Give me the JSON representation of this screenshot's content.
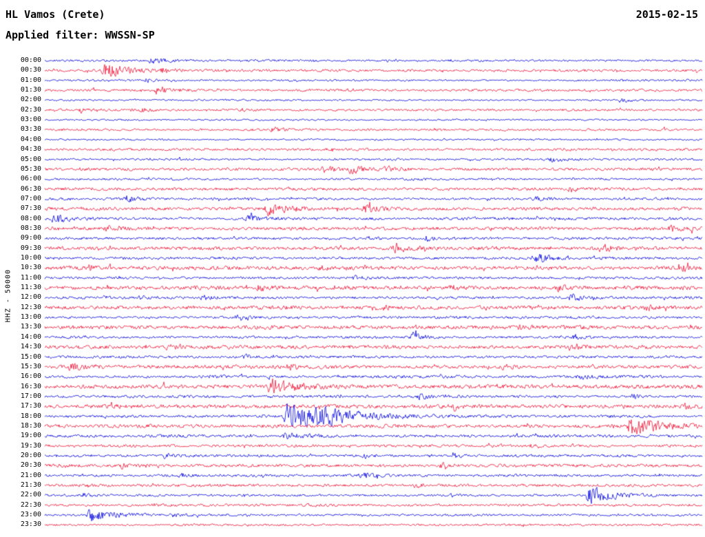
{
  "header": {
    "station": "HL Vamos (Crete)",
    "date": "2015-02-15",
    "filter": "Applied filter: WWSSN-SP"
  },
  "y_axis_label": "HHZ - 50000",
  "chart_data": {
    "type": "line",
    "subtype": "helicorder-seismogram",
    "title": "HL Vamos (Crete)",
    "date": "2015-02-15",
    "filter": "WWSSN-SP",
    "channel_scale_label": "HHZ - 50000",
    "minutes_per_row": 30,
    "time_start": "00:00",
    "time_end": "23:59",
    "legend_position": "none",
    "grid": false,
    "colors": {
      "blue": "#0000dd",
      "red": "#ee1133"
    },
    "rows": [
      {
        "t": "00:00",
        "c": "blue",
        "a": 1.8,
        "b": [
          [
            0.16,
            5,
            22
          ]
        ]
      },
      {
        "t": "00:30",
        "c": "red",
        "a": 2.2,
        "b": [
          [
            0.091,
            14,
            28
          ],
          [
            0.18,
            4,
            15
          ]
        ]
      },
      {
        "t": "01:00",
        "c": "blue",
        "a": 1.6,
        "b": [
          [
            0.155,
            3,
            12
          ]
        ]
      },
      {
        "t": "01:30",
        "c": "red",
        "a": 2.2,
        "b": [
          [
            0.17,
            7,
            20
          ]
        ]
      },
      {
        "t": "02:00",
        "c": "blue",
        "a": 1.5,
        "b": [
          [
            0.875,
            4,
            15
          ]
        ]
      },
      {
        "t": "02:30",
        "c": "red",
        "a": 2.0,
        "b": [
          [
            0.055,
            4,
            12
          ],
          [
            0.147,
            4,
            14
          ]
        ]
      },
      {
        "t": "03:00",
        "c": "blue",
        "a": 1.5,
        "b": []
      },
      {
        "t": "03:30",
        "c": "red",
        "a": 2.0,
        "b": [
          [
            0.345,
            4,
            14
          ]
        ]
      },
      {
        "t": "04:00",
        "c": "blue",
        "a": 1.5,
        "b": []
      },
      {
        "t": "04:30",
        "c": "red",
        "a": 2.2,
        "b": []
      },
      {
        "t": "05:00",
        "c": "blue",
        "a": 1.8,
        "b": [
          [
            0.77,
            4,
            14
          ]
        ]
      },
      {
        "t": "05:30",
        "c": "red",
        "a": 2.6,
        "b": [
          [
            0.42,
            6,
            16
          ],
          [
            0.466,
            7,
            18
          ],
          [
            0.52,
            5,
            14
          ]
        ]
      },
      {
        "t": "06:00",
        "c": "blue",
        "a": 1.8,
        "b": [
          [
            0.56,
            3,
            12
          ]
        ]
      },
      {
        "t": "06:30",
        "c": "red",
        "a": 2.6,
        "b": [
          [
            0.8,
            5,
            14
          ]
        ]
      },
      {
        "t": "07:00",
        "c": "blue",
        "a": 2.2,
        "b": [
          [
            0.125,
            5,
            14
          ],
          [
            0.744,
            4,
            12
          ]
        ]
      },
      {
        "t": "07:30",
        "c": "red",
        "a": 2.8,
        "b": [
          [
            0.338,
            11,
            30
          ],
          [
            0.487,
            7,
            22
          ]
        ]
      },
      {
        "t": "08:00",
        "c": "blue",
        "a": 2.4,
        "b": [
          [
            0.014,
            9,
            20
          ],
          [
            0.31,
            7,
            18
          ]
        ]
      },
      {
        "t": "08:30",
        "c": "red",
        "a": 3.0,
        "b": [
          [
            0.094,
            5,
            14
          ],
          [
            0.953,
            6,
            16
          ]
        ]
      },
      {
        "t": "09:00",
        "c": "blue",
        "a": 2.2,
        "b": [
          [
            0.58,
            4,
            12
          ]
        ]
      },
      {
        "t": "09:30",
        "c": "red",
        "a": 3.0,
        "b": [
          [
            0.534,
            8,
            20
          ],
          [
            0.853,
            6,
            16
          ]
        ]
      },
      {
        "t": "10:00",
        "c": "blue",
        "a": 2.4,
        "b": [
          [
            0.749,
            8,
            18
          ]
        ]
      },
      {
        "t": "10:30",
        "c": "red",
        "a": 3.2,
        "b": [
          [
            0.068,
            5,
            12
          ],
          [
            0.414,
            5,
            12
          ],
          [
            0.968,
            5,
            12
          ]
        ]
      },
      {
        "t": "11:00",
        "c": "blue",
        "a": 2.2,
        "b": [
          [
            0.471,
            4,
            12
          ]
        ]
      },
      {
        "t": "11:30",
        "c": "red",
        "a": 3.2,
        "b": [
          [
            0.325,
            6,
            16
          ],
          [
            0.618,
            4,
            12
          ],
          [
            0.78,
            5,
            12
          ]
        ]
      },
      {
        "t": "12:00",
        "c": "blue",
        "a": 2.4,
        "b": [
          [
            0.147,
            4,
            12
          ],
          [
            0.24,
            4,
            12
          ],
          [
            0.8,
            7,
            16
          ]
        ]
      },
      {
        "t": "12:30",
        "c": "red",
        "a": 3.2,
        "b": [
          [
            0.518,
            4,
            12
          ],
          [
            0.916,
            4,
            12
          ]
        ]
      },
      {
        "t": "13:00",
        "c": "blue",
        "a": 2.2,
        "b": [
          [
            0.293,
            4,
            12
          ]
        ]
      },
      {
        "t": "13:30",
        "c": "red",
        "a": 3.2,
        "b": [
          [
            0.722,
            4,
            12
          ]
        ]
      },
      {
        "t": "14:00",
        "c": "blue",
        "a": 2.2,
        "b": [
          [
            0.56,
            7,
            16
          ],
          [
            0.806,
            4,
            12
          ]
        ]
      },
      {
        "t": "14:30",
        "c": "red",
        "a": 3.2,
        "b": [
          [
            0.188,
            5,
            12
          ],
          [
            0.806,
            4,
            12
          ]
        ]
      },
      {
        "t": "15:00",
        "c": "blue",
        "a": 2.2,
        "b": [
          [
            0.304,
            4,
            12
          ]
        ]
      },
      {
        "t": "15:30",
        "c": "red",
        "a": 3.2,
        "b": [
          [
            0.037,
            7,
            16
          ],
          [
            0.372,
            5,
            12
          ],
          [
            0.696,
            5,
            12
          ]
        ]
      },
      {
        "t": "16:00",
        "c": "blue",
        "a": 2.4,
        "b": [
          [
            0.246,
            4,
            12
          ],
          [
            0.81,
            5,
            12
          ]
        ]
      },
      {
        "t": "16:30",
        "c": "red",
        "a": 3.4,
        "b": [
          [
            0.345,
            12,
            40
          ]
        ]
      },
      {
        "t": "17:00",
        "c": "blue",
        "a": 2.4,
        "b": [
          [
            0.57,
            5,
            12
          ],
          [
            0.895,
            4,
            12
          ]
        ]
      },
      {
        "t": "17:30",
        "c": "red",
        "a": 3.2,
        "b": [
          [
            0.623,
            5,
            12
          ],
          [
            0.975,
            5,
            12
          ]
        ]
      },
      {
        "t": "18:00",
        "c": "blue",
        "a": 2.4,
        "b": [
          [
            0.366,
            24,
            55
          ],
          [
            0.41,
            8,
            70
          ]
        ]
      },
      {
        "t": "18:30",
        "c": "red",
        "a": 3.0,
        "b": [
          [
            0.89,
            18,
            40
          ]
        ]
      },
      {
        "t": "19:00",
        "c": "blue",
        "a": 2.4,
        "b": [
          [
            0.366,
            6,
            30
          ]
        ]
      },
      {
        "t": "19:30",
        "c": "red",
        "a": 2.4,
        "b": [
          [
            0.738,
            3,
            10
          ]
        ]
      },
      {
        "t": "20:00",
        "c": "blue",
        "a": 2.2,
        "b": [
          [
            0.183,
            4,
            12
          ],
          [
            0.487,
            4,
            12
          ],
          [
            0.623,
            4,
            12
          ]
        ]
      },
      {
        "t": "20:30",
        "c": "red",
        "a": 2.6,
        "b": [
          [
            0.115,
            5,
            12
          ],
          [
            0.602,
            5,
            12
          ]
        ]
      },
      {
        "t": "21:00",
        "c": "blue",
        "a": 2.2,
        "b": [
          [
            0.21,
            4,
            10
          ],
          [
            0.482,
            7,
            16
          ]
        ]
      },
      {
        "t": "21:30",
        "c": "red",
        "a": 2.4,
        "b": [
          [
            0.565,
            4,
            10
          ]
        ]
      },
      {
        "t": "22:00",
        "c": "blue",
        "a": 2.0,
        "b": [
          [
            0.058,
            3,
            10
          ],
          [
            0.827,
            15,
            35
          ]
        ]
      },
      {
        "t": "22:30",
        "c": "red",
        "a": 2.2,
        "b": [
          [
            0.393,
            3,
            10
          ]
        ]
      },
      {
        "t": "23:00",
        "c": "blue",
        "a": 2.0,
        "b": [
          [
            0.068,
            12,
            30
          ],
          [
            0.194,
            5,
            14
          ]
        ]
      },
      {
        "t": "23:30",
        "c": "red",
        "a": 2.0,
        "b": []
      }
    ]
  }
}
